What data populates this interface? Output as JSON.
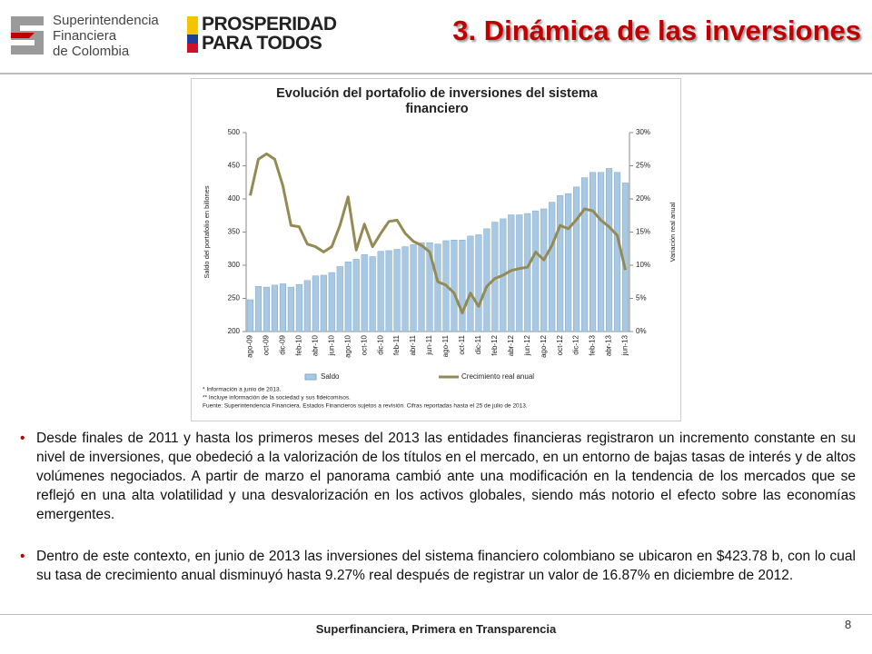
{
  "header": {
    "org": [
      "Superintendencia",
      "Financiera",
      "de Colombia"
    ],
    "campaign": [
      "PROSPERIDAD",
      "PARA TODOS"
    ],
    "title": "3. Dinámica de las inversiones"
  },
  "chart_data": {
    "type": "combo",
    "title": "Evolución del portafolio de inversiones del sistema financiero",
    "ylabel": "Saldo del portafolio en billones",
    "y2label": "Variación real anual",
    "categories": [
      "ago-09",
      null,
      "oct-09",
      null,
      "dic-09",
      null,
      "feb-10",
      null,
      "abr-10",
      null,
      "jun-10",
      null,
      "ago-10",
      null,
      "oct-10",
      null,
      "dic-10",
      null,
      "feb-11",
      null,
      "abr-11",
      null,
      "jun-11",
      null,
      "ago-11",
      null,
      "oct-11",
      null,
      "dic-11",
      null,
      "feb-12",
      null,
      "abr-12",
      null,
      "jun-12",
      null,
      "ago-12",
      null,
      "oct-12",
      null,
      "dic-12",
      null,
      "feb-13",
      null,
      "abr-13",
      null,
      "jun-13"
    ],
    "series": [
      {
        "name": "Saldo",
        "type": "bar",
        "color": "#a9c9e3",
        "values": [
          248,
          268,
          267,
          270,
          272,
          267,
          271,
          277,
          284,
          285,
          289,
          298,
          305,
          309,
          316,
          313,
          321,
          322,
          324,
          328,
          331,
          334,
          334,
          332,
          337,
          338,
          338,
          344,
          346,
          355,
          365,
          370,
          376,
          376,
          378,
          382,
          385,
          395,
          405,
          408,
          418,
          432,
          440,
          440,
          446,
          440,
          424
        ]
      },
      {
        "name": "Crecimiento real anual",
        "type": "line",
        "axis": "y2",
        "color": "#948a54",
        "values": [
          20.5,
          26,
          26.8,
          26,
          22,
          16,
          15.8,
          13.2,
          12.8,
          12,
          12.8,
          16,
          20.3,
          12.3,
          16.2,
          12.8,
          14.8,
          16.6,
          16.8,
          14.8,
          13.6,
          13,
          12,
          7.5,
          7,
          5.8,
          2.8,
          5.8,
          3.8,
          6.8,
          8,
          8.5,
          9.2,
          9.5,
          9.7,
          12,
          10.8,
          13,
          16,
          15.5,
          16.87,
          18.5,
          18.2,
          16.8,
          15.8,
          14.5,
          9.27
        ]
      }
    ],
    "ylim": [
      200,
      500
    ],
    "yticks": [
      200,
      250,
      300,
      350,
      400,
      450,
      500
    ],
    "y2lim": [
      0,
      30
    ],
    "y2ticks": [
      {
        "value": 0,
        "label": "0%"
      },
      {
        "value": 5,
        "label": "5%"
      },
      {
        "value": 10,
        "label": "10%"
      },
      {
        "value": 15,
        "label": "15%"
      },
      {
        "value": 20,
        "label": "20%"
      },
      {
        "value": 25,
        "label": "25%"
      },
      {
        "value": 30,
        "label": "30%"
      }
    ],
    "grid": false,
    "legend": "bottom",
    "notes": [
      "* Información a junio de 2013.",
      "** Incluye información de la sociedad y sus fideicomisos.",
      "Fuente: Superintendencia Financiera. Estados Financieros sujetos a revisión. Cifras reportadas hasta el 25 de julio de 2013."
    ]
  },
  "bullets": [
    "Desde finales de 2011 y hasta los primeros meses del 2013 las entidades financieras registraron un incremento constante en su nivel de inversiones, que obedeció a la valorización de los títulos en el mercado, en un entorno de bajas tasas de interés y de altos volúmenes negociados. A partir de marzo el panorama cambió ante una modificación en la tendencia de los mercados que se reflejó en una alta volatilidad y una desvalorización en los activos globales, siendo más notorio el efecto sobre las economías emergentes.",
    "Dentro de este contexto, en junio de 2013 las inversiones del sistema financiero colombiano se ubicaron en $423.78 b, con lo cual su tasa de crecimiento anual disminuyó hasta 9.27% real después de registrar un valor de 16.87% en diciembre de 2012."
  ],
  "footer": {
    "text": "Superfinanciera, Primera en Transparencia",
    "page": 8
  }
}
